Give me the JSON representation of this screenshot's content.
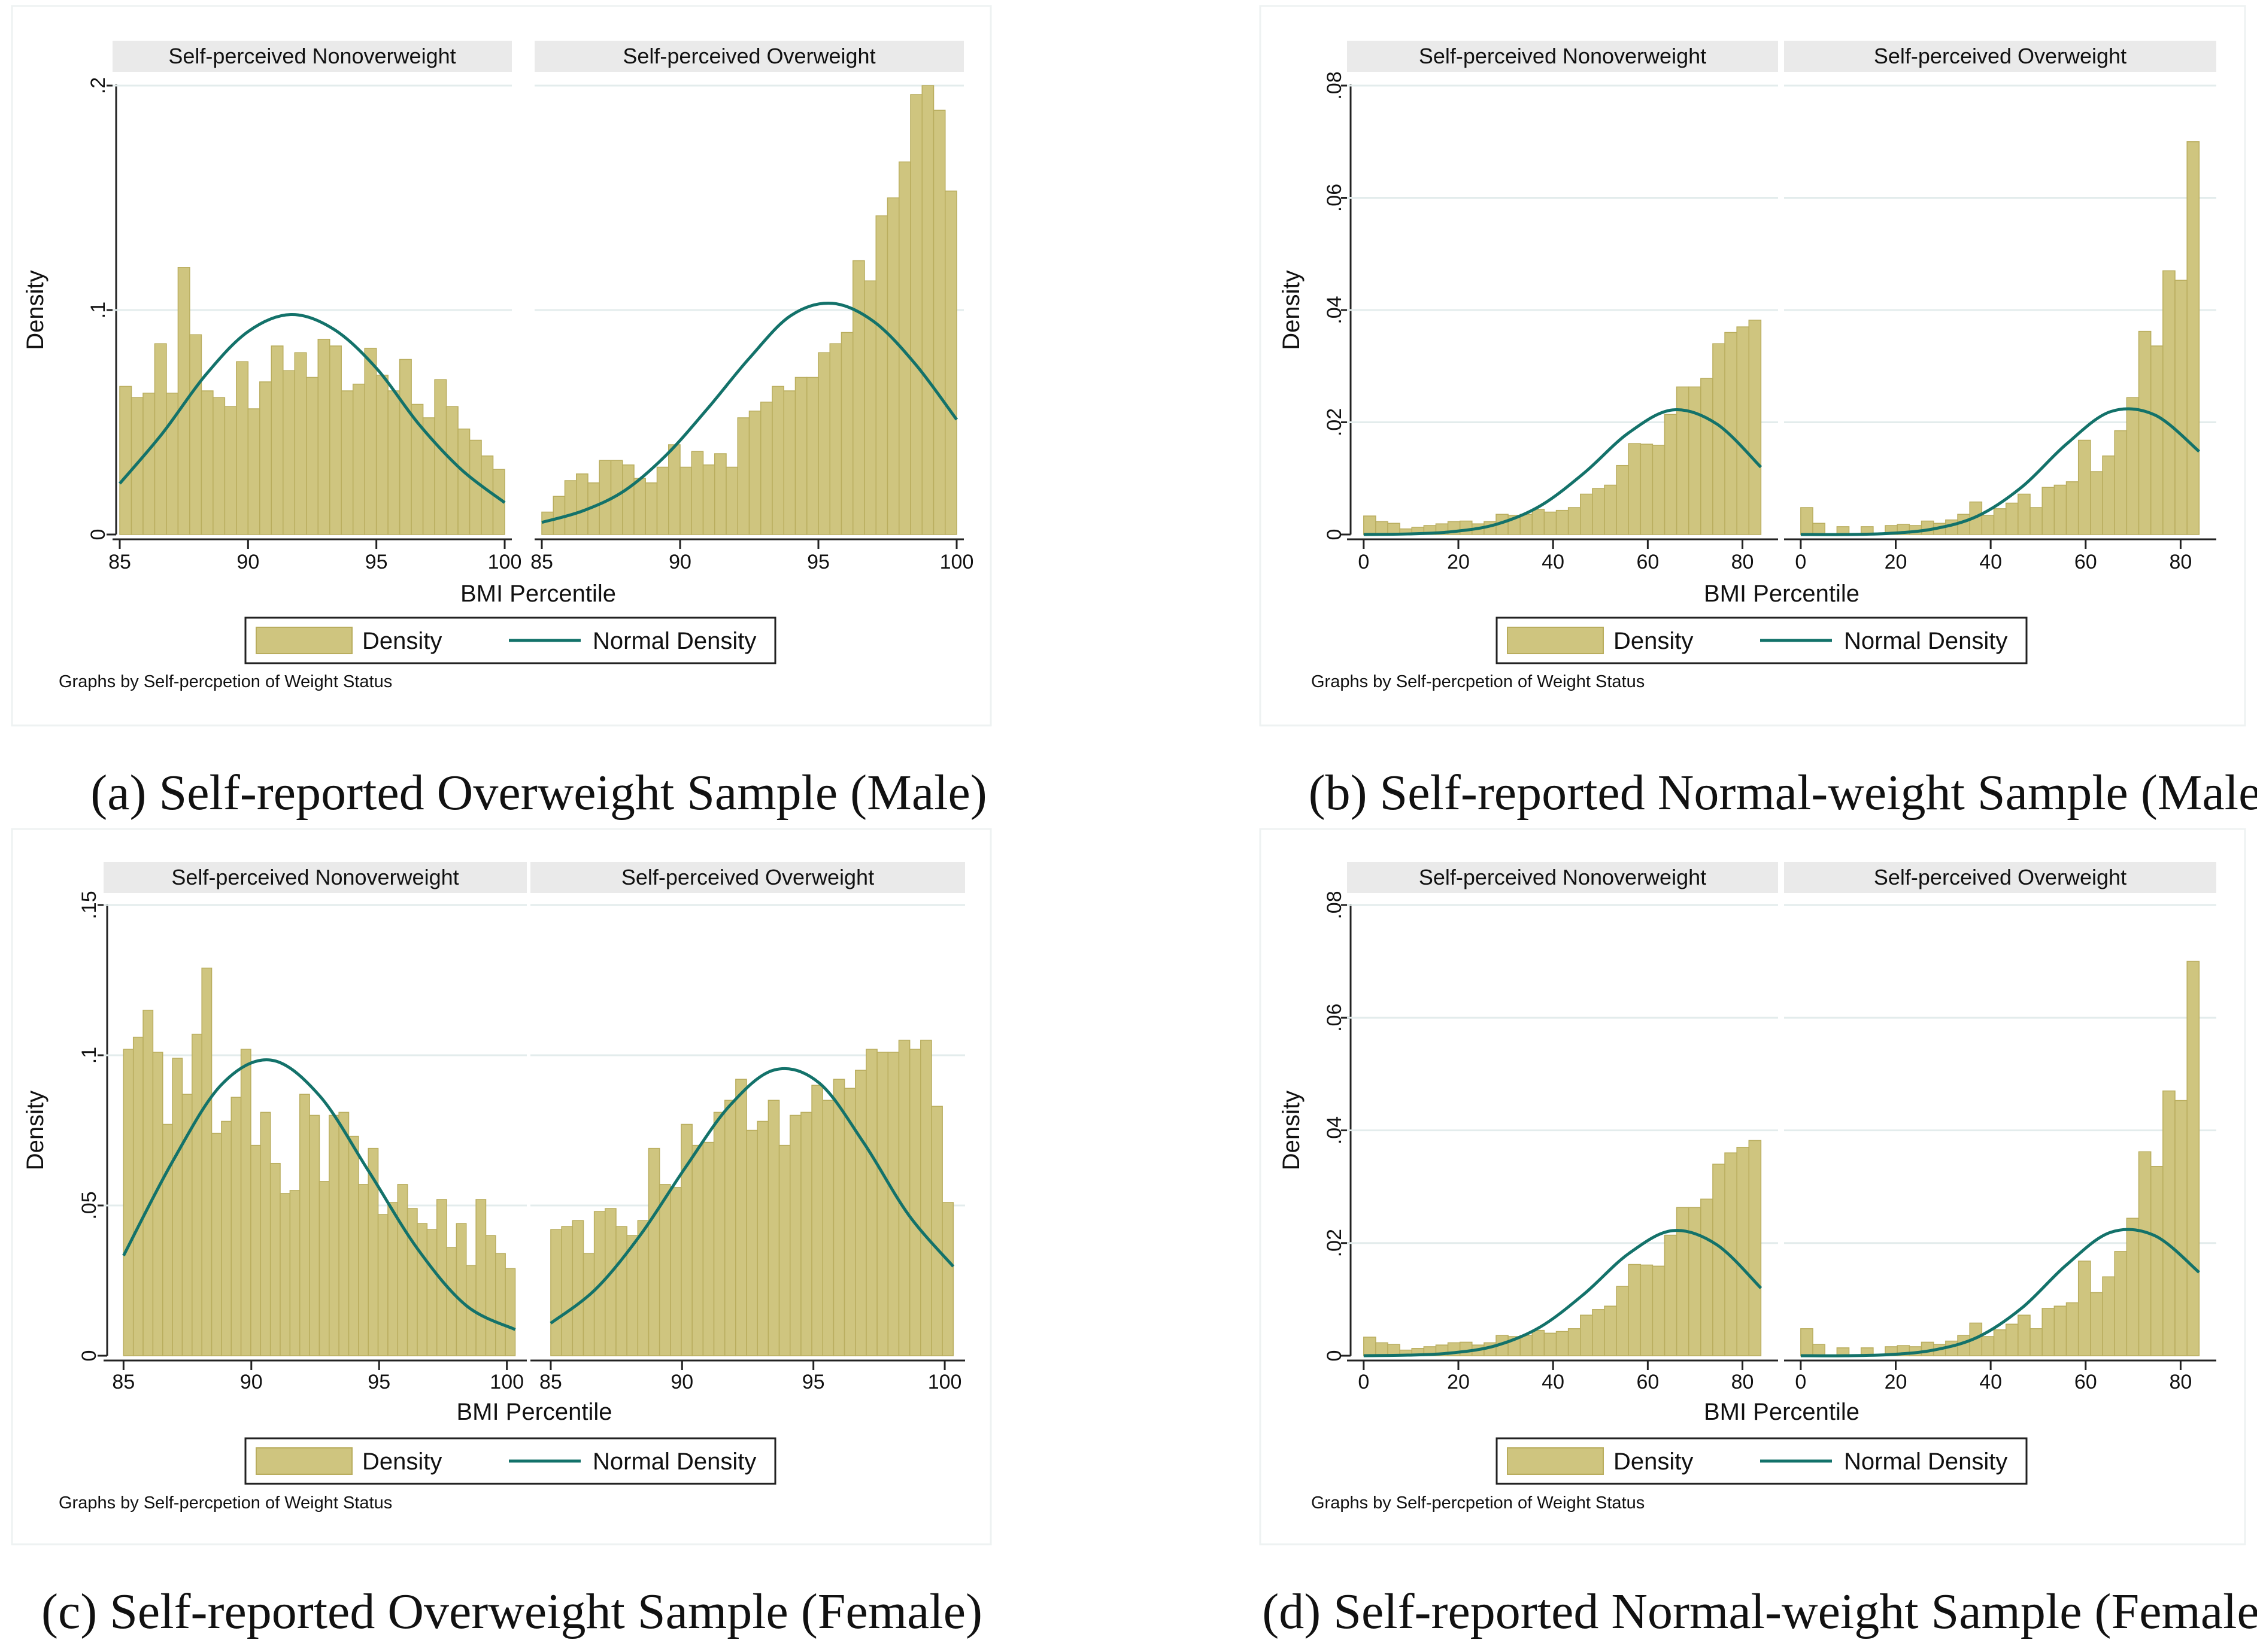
{
  "figure": {
    "panel_labels": {
      "a": "(a) Self-reported Overweight Sample (Male)",
      "b": "(b) Self-reported Normal-weight Sample (Male)",
      "c": "(c) Self-reported Overweight Sample (Female)",
      "d": "(d) Self-reported Normal-weight Sample (Female)"
    },
    "colors": {
      "bar": "#cfc57f",
      "bar_edge": "#b9ad5e",
      "curve": "#13726a",
      "strip": "#eaeaea",
      "grid": "#e3ecec"
    }
  },
  "chart_data": [
    {
      "id": "a",
      "type": "bar",
      "subtype": "histogram with normal density overlay",
      "ylabel": "Density",
      "xlabel": "BMI Percentile",
      "note": "Graphs by Self-percpetion of Weight Status",
      "legend": [
        "Density",
        "Normal Density"
      ],
      "yticks": [
        0,
        0.1,
        0.2
      ],
      "ytick_labels": [
        "0",
        ".1",
        ".2"
      ],
      "ylim": [
        0,
        0.2
      ],
      "xticks": [
        85,
        90,
        95,
        100
      ],
      "xtick_labels": [
        "85",
        "90",
        "95",
        "100"
      ],
      "xlim": [
        85,
        100
      ],
      "facets": [
        {
          "title": "Self-perceived Nonoverweight",
          "values": [
            0.066,
            0.061,
            0.063,
            0.085,
            0.063,
            0.119,
            0.089,
            0.064,
            0.061,
            0.057,
            0.077,
            0.056,
            0.068,
            0.084,
            0.073,
            0.081,
            0.07,
            0.087,
            0.084,
            0.064,
            0.067,
            0.083,
            0.071,
            0.064,
            0.078,
            0.058,
            0.052,
            0.069,
            0.057,
            0.047,
            0.042,
            0.035,
            0.029
          ],
          "curve_y": [
            0.0227,
            0.0451,
            0.0709,
            0.0904,
            0.098,
            0.0915,
            0.0741,
            0.049,
            0.0287,
            0.0142
          ]
        },
        {
          "title": "Self-perceived Overweight",
          "values": [
            0.01,
            0.017,
            0.024,
            0.027,
            0.023,
            0.033,
            0.033,
            0.031,
            0.025,
            0.023,
            0.03,
            0.04,
            0.03,
            0.037,
            0.031,
            0.036,
            0.03,
            0.052,
            0.055,
            0.059,
            0.066,
            0.064,
            0.07,
            0.07,
            0.081,
            0.085,
            0.09,
            0.122,
            0.113,
            0.142,
            0.15,
            0.166,
            0.196,
            0.2,
            0.189,
            0.153
          ],
          "curve_y": [
            0.0054,
            0.0106,
            0.0196,
            0.0354,
            0.0562,
            0.0785,
            0.0975,
            0.103,
            0.0949,
            0.076,
            0.0512
          ]
        }
      ]
    },
    {
      "id": "b",
      "type": "bar",
      "subtype": "histogram with normal density overlay",
      "ylabel": "Density",
      "xlabel": "BMI Percentile",
      "note": "Graphs by Self-percpetion of Weight Status",
      "legend": [
        "Density",
        "Normal Density"
      ],
      "yticks": [
        0,
        0.02,
        0.04,
        0.06,
        0.08
      ],
      "ytick_labels": [
        "0",
        ".02",
        ".04",
        ".06",
        ".08"
      ],
      "ylim": [
        0,
        0.08
      ],
      "xticks": [
        0,
        20,
        40,
        60,
        80
      ],
      "xtick_labels": [
        "0",
        "20",
        "40",
        "60",
        "80"
      ],
      "xlim": [
        -2,
        86
      ],
      "facets": [
        {
          "title": "Self-perceived Nonoverweight",
          "values": [
            0.0033,
            0.0023,
            0.002,
            0.001,
            0.0013,
            0.0016,
            0.0019,
            0.0023,
            0.0024,
            0.0019,
            0.0023,
            0.0036,
            0.0034,
            0.0036,
            0.0045,
            0.004,
            0.0043,
            0.0048,
            0.0072,
            0.0082,
            0.0088,
            0.0123,
            0.0162,
            0.0161,
            0.0159,
            0.0214,
            0.0263,
            0.0263,
            0.0278,
            0.034,
            0.036,
            0.037,
            0.0382
          ],
          "curve_y": [
            0.0,
            0.0001,
            0.0005,
            0.0018,
            0.0051,
            0.011,
            0.0181,
            0.0222,
            0.0197,
            0.012
          ]
        },
        {
          "title": "Self-perceived Overweight",
          "values": [
            0.0048,
            0.002,
            0.0,
            0.0014,
            0.0,
            0.0014,
            0.0,
            0.0016,
            0.0018,
            0.0016,
            0.0024,
            0.002,
            0.0026,
            0.0036,
            0.0058,
            0.0034,
            0.0046,
            0.0056,
            0.0072,
            0.0048,
            0.0084,
            0.0088,
            0.0094,
            0.0168,
            0.0112,
            0.014,
            0.0185,
            0.0244,
            0.0362,
            0.0336,
            0.047,
            0.0453,
            0.07
          ],
          "curve_y": [
            0.0,
            0.0,
            0.0002,
            0.001,
            0.0033,
            0.0085,
            0.0161,
            0.0219,
            0.0213,
            0.0148
          ]
        }
      ]
    },
    {
      "id": "c",
      "type": "bar",
      "subtype": "histogram with normal density overlay",
      "ylabel": "Density",
      "xlabel": "BMI Percentile",
      "note": "Graphs by Self-percpetion of Weight Status",
      "legend": [
        "Density",
        "Normal Density"
      ],
      "yticks": [
        0,
        0.05,
        0.1,
        0.15
      ],
      "ytick_labels": [
        "0",
        ".05",
        ".1",
        ".15"
      ],
      "ylim": [
        0,
        0.15
      ],
      "xticks": [
        85,
        90,
        95,
        100
      ],
      "xtick_labels": [
        "85",
        "90",
        "95",
        "100"
      ],
      "xlim": [
        84.5,
        100.5
      ],
      "facets": [
        {
          "title": "Self-perceived Nonoverweight",
          "values": [
            0.102,
            0.106,
            0.115,
            0.101,
            0.077,
            0.099,
            0.087,
            0.107,
            0.129,
            0.074,
            0.078,
            0.086,
            0.102,
            0.07,
            0.081,
            0.064,
            0.054,
            0.055,
            0.087,
            0.08,
            0.058,
            0.08,
            0.081,
            0.073,
            0.057,
            0.069,
            0.047,
            0.051,
            0.057,
            0.049,
            0.044,
            0.042,
            0.052,
            0.036,
            0.044,
            0.03,
            0.052,
            0.04,
            0.034,
            0.029
          ],
          "curve_y": [
            0.0333,
            0.0646,
            0.0902,
            0.0984,
            0.0866,
            0.0616,
            0.0357,
            0.0167,
            0.0087
          ]
        },
        {
          "title": "Self-perceived Overweight",
          "values": [
            0.042,
            0.043,
            0.045,
            0.034,
            0.048,
            0.049,
            0.043,
            0.04,
            0.045,
            0.069,
            0.057,
            0.056,
            0.077,
            0.07,
            0.071,
            0.081,
            0.085,
            0.092,
            0.075,
            0.078,
            0.085,
            0.07,
            0.08,
            0.081,
            0.09,
            0.085,
            0.092,
            0.089,
            0.095,
            0.102,
            0.101,
            0.101,
            0.105,
            0.102,
            0.105,
            0.083,
            0.051
          ],
          "curve_y": [
            0.0108,
            0.0221,
            0.0401,
            0.0624,
            0.0832,
            0.0951,
            0.0908,
            0.0708,
            0.0469,
            0.0297
          ]
        }
      ]
    },
    {
      "id": "d",
      "type": "bar",
      "subtype": "histogram with normal density overlay",
      "ylabel": "Density",
      "xlabel": "BMI Percentile",
      "note": "Graphs by Self-percpetion of Weight Status",
      "legend": [
        "Density",
        "Normal Density"
      ],
      "yticks": [
        0,
        0.02,
        0.04,
        0.06,
        0.08
      ],
      "ytick_labels": [
        "0",
        ".02",
        ".04",
        ".06",
        ".08"
      ],
      "ylim": [
        0,
        0.08
      ],
      "xticks": [
        0,
        20,
        40,
        60,
        80
      ],
      "xtick_labels": [
        "0",
        "20",
        "40",
        "60",
        "80"
      ],
      "xlim": [
        -2,
        86
      ],
      "facets": [
        {
          "title": "Self-perceived Nonoverweight",
          "values": [
            0.0033,
            0.0023,
            0.002,
            0.001,
            0.0013,
            0.0016,
            0.0019,
            0.0023,
            0.0024,
            0.0019,
            0.0023,
            0.0036,
            0.0034,
            0.0036,
            0.0045,
            0.004,
            0.0043,
            0.0048,
            0.0072,
            0.0082,
            0.0088,
            0.0123,
            0.0162,
            0.0161,
            0.0159,
            0.0214,
            0.0263,
            0.0263,
            0.0278,
            0.034,
            0.036,
            0.037,
            0.0382
          ],
          "curve_y": [
            0.0,
            0.0001,
            0.0005,
            0.0018,
            0.0051,
            0.011,
            0.0181,
            0.0222,
            0.0197,
            0.012
          ]
        },
        {
          "title": "Self-perceived Overweight",
          "values": [
            0.0048,
            0.002,
            0.0,
            0.0014,
            0.0,
            0.0014,
            0.0,
            0.0016,
            0.0018,
            0.0016,
            0.0024,
            0.002,
            0.0026,
            0.0036,
            0.0058,
            0.0034,
            0.0046,
            0.0056,
            0.0072,
            0.0048,
            0.0084,
            0.0088,
            0.0094,
            0.0168,
            0.0112,
            0.014,
            0.0185,
            0.0244,
            0.0362,
            0.0336,
            0.047,
            0.0453,
            0.07
          ],
          "curve_y": [
            0.0,
            0.0,
            0.0002,
            0.001,
            0.0033,
            0.0085,
            0.0161,
            0.0219,
            0.0213,
            0.0148
          ]
        }
      ]
    }
  ]
}
